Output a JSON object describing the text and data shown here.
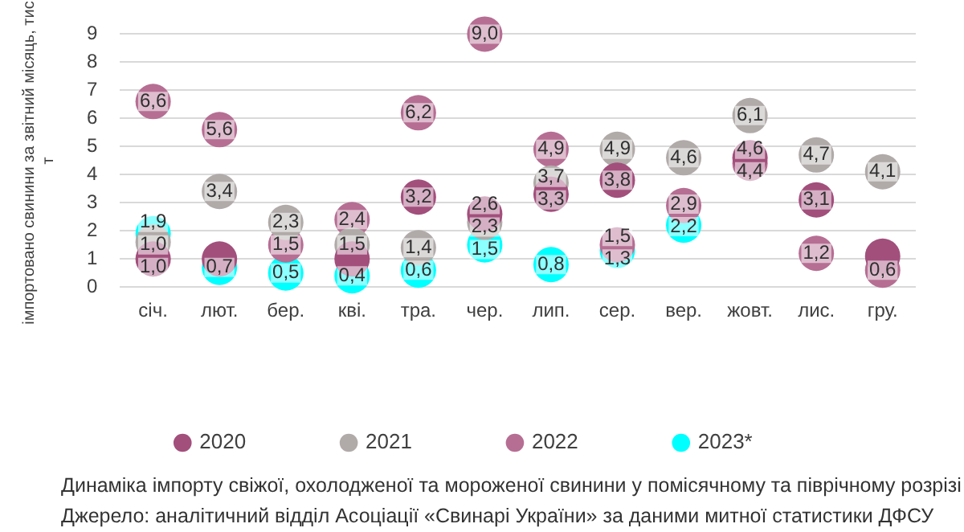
{
  "chart_data": {
    "type": "scatter",
    "ylabel": "імпортовано свинини за звітний місяць, тис. т",
    "categories": [
      "січ.",
      "лют.",
      "бер.",
      "кві.",
      "тра.",
      "чер.",
      "лип.",
      "сер.",
      "вер.",
      "жовт.",
      "лис.",
      "гру."
    ],
    "series": [
      {
        "name": "2020",
        "color": "#a24f7c",
        "values": [
          1.0,
          1.0,
          null,
          1.0,
          3.2,
          2.6,
          3.3,
          3.8,
          null,
          4.6,
          3.1,
          1.1
        ],
        "value_labels": [
          "1,0",
          null,
          null,
          null,
          "3,2",
          "2,6",
          "3,3",
          "3,8",
          null,
          "4,6",
          "3,1",
          null
        ]
      },
      {
        "name": "2021",
        "color": "#b0aaa9",
        "values": [
          1.6,
          3.4,
          2.3,
          1.5,
          1.4,
          2.3,
          3.7,
          4.9,
          4.6,
          6.1,
          4.7,
          4.1
        ],
        "value_labels": [
          null,
          "3,4",
          "2,3",
          "1,5",
          "1,4",
          "2,3",
          "3,7",
          "4,9",
          "4,6",
          "6,1",
          "4,7",
          "4,1"
        ]
      },
      {
        "name": "2022",
        "color": "#b66e93",
        "values": [
          6.6,
          5.6,
          1.5,
          2.4,
          6.2,
          9.0,
          4.9,
          1.5,
          2.9,
          4.4,
          1.2,
          0.6
        ],
        "value_labels": [
          "6,6",
          "5,6",
          "1,5",
          "2,4",
          "6,2",
          "9,0",
          "4,9",
          "1,5",
          "2,9",
          "4,4",
          "1,2",
          "0,6"
        ]
      },
      {
        "name": "2023*",
        "color": "#00ffff",
        "values": [
          1.9,
          0.7,
          0.5,
          0.4,
          0.6,
          1.5,
          0.8,
          1.3,
          2.2,
          null,
          null,
          null
        ],
        "value_labels": [
          "1,9",
          "0,7",
          "0,5",
          "0,4",
          "0,6",
          "1,5",
          "0,8",
          "1,3",
          "2,2",
          null,
          null,
          null
        ]
      }
    ],
    "ylim": [
      0,
      9
    ],
    "yticks": [
      0,
      1,
      2,
      3,
      4,
      5,
      6,
      7,
      8,
      9
    ],
    "grid": "y",
    "legend": "bottom",
    "marker": "circle",
    "annotations": [
      {
        "text": "1,0",
        "x": "січ.",
        "y": 1.6
      },
      "Динаміка імпорту свіжої, охолодженої та мороженої свинини у помісячному та піврічному розрізі",
      "Джерело: аналітичний відділ Асоціації «Свинарі України» за даними митної статистики ДФСУ"
    ]
  }
}
